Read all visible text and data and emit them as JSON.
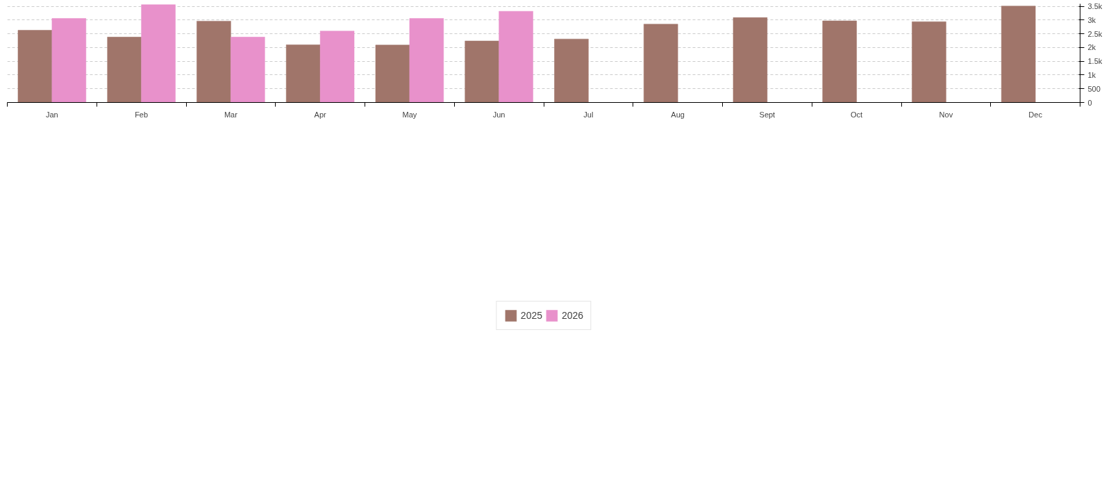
{
  "chart_data": {
    "type": "bar",
    "categories": [
      "Jan",
      "Feb",
      "Mar",
      "Apr",
      "May",
      "Jun",
      "Jul",
      "Aug",
      "Sept",
      "Oct",
      "Nov",
      "Dec"
    ],
    "series": [
      {
        "name": "2025",
        "color": "#a0756a",
        "values": [
          2630,
          2380,
          2960,
          2100,
          2090,
          2240,
          2310,
          2850,
          3090,
          2970,
          2940,
          3510
        ]
      },
      {
        "name": "2026",
        "color": "#e891cb",
        "values": [
          3060,
          3560,
          2380,
          2600,
          3060,
          3320,
          0,
          0,
          0,
          0,
          0,
          0
        ]
      }
    ],
    "ylim": [
      0,
      3590
    ],
    "yticks": [
      0,
      500,
      {
        "value": 1000,
        "label": "1k"
      },
      {
        "value": 1500,
        "label": "1.5k"
      },
      {
        "value": 2000,
        "label": "2k"
      },
      {
        "value": 2500,
        "label": "2.5k"
      },
      {
        "value": 3000,
        "label": "3k"
      },
      {
        "value": 3500,
        "label": "3.5k"
      }
    ],
    "grid": "y",
    "legend": "bottom"
  }
}
